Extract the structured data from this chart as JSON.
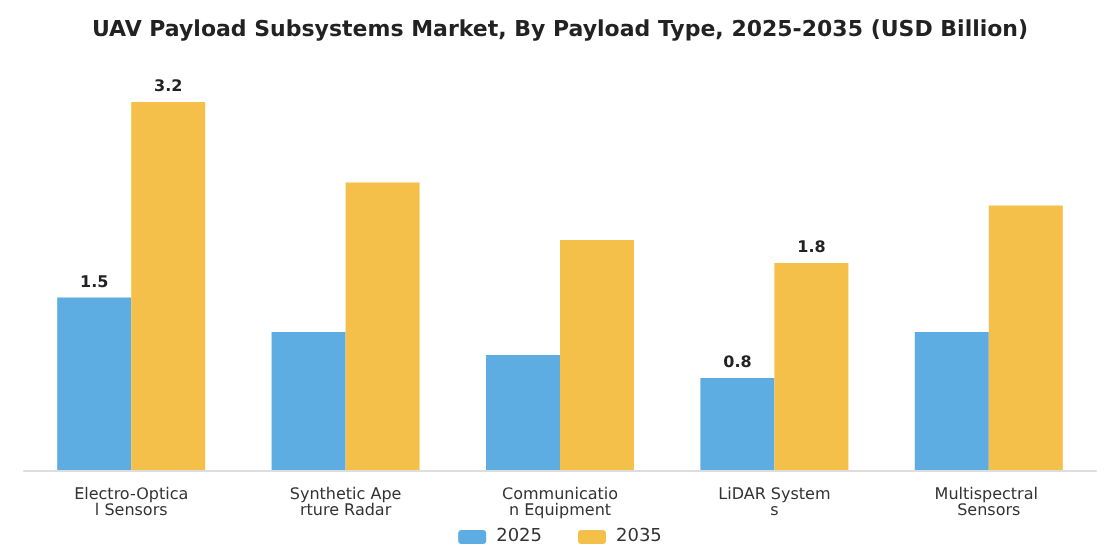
{
  "chart_data": {
    "type": "bar",
    "title": "UAV Payload Subsystems Market, By Payload Type, 2025-2035 (USD Billion)",
    "categories": [
      "Electro-Optical Sensors",
      "Synthetic Aperture Radar",
      "Communication Equipment",
      "LiDAR Systems",
      "Multispectral Sensors"
    ],
    "series": [
      {
        "name": "2025",
        "color": "#5dade2",
        "values": [
          1.5,
          1.2,
          1.0,
          0.8,
          1.2
        ],
        "value_labels": [
          "1.5",
          null,
          null,
          "0.8",
          null
        ]
      },
      {
        "name": "2035",
        "color": "#f5c04a",
        "values": [
          3.2,
          2.5,
          2.0,
          1.8,
          2.3
        ],
        "value_labels": [
          "3.2",
          null,
          null,
          "1.8",
          null
        ]
      }
    ],
    "legend": "bottom",
    "grid": false
  }
}
